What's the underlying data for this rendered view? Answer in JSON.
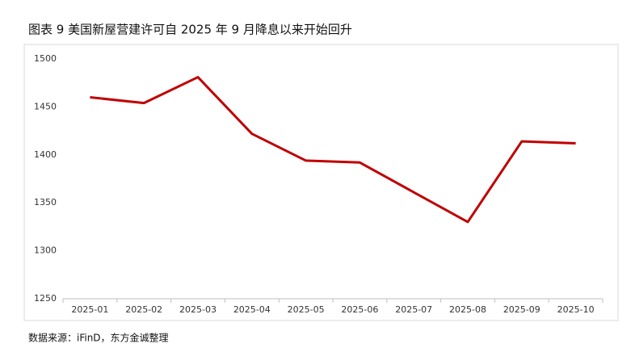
{
  "chart_data": {
    "type": "line",
    "title": "图表 9 美国新屋营建许可自 2025 年 9 月降息以来开始回升",
    "source": "数据来源：iFinD，东方金诚整理",
    "categories": [
      "2025-01",
      "2025-02",
      "2025-03",
      "2025-04",
      "2025-05",
      "2025-06",
      "2025-07",
      "2025-08",
      "2025-09",
      "2025-10"
    ],
    "values": [
      1460,
      1454,
      1481,
      1422,
      1394,
      1392,
      1361,
      1330,
      1414,
      1412
    ],
    "color": "#c00000",
    "ylim": [
      1250,
      1500
    ],
    "yticks": [
      1250,
      1300,
      1350,
      1400,
      1450,
      1500
    ],
    "grid": false
  }
}
